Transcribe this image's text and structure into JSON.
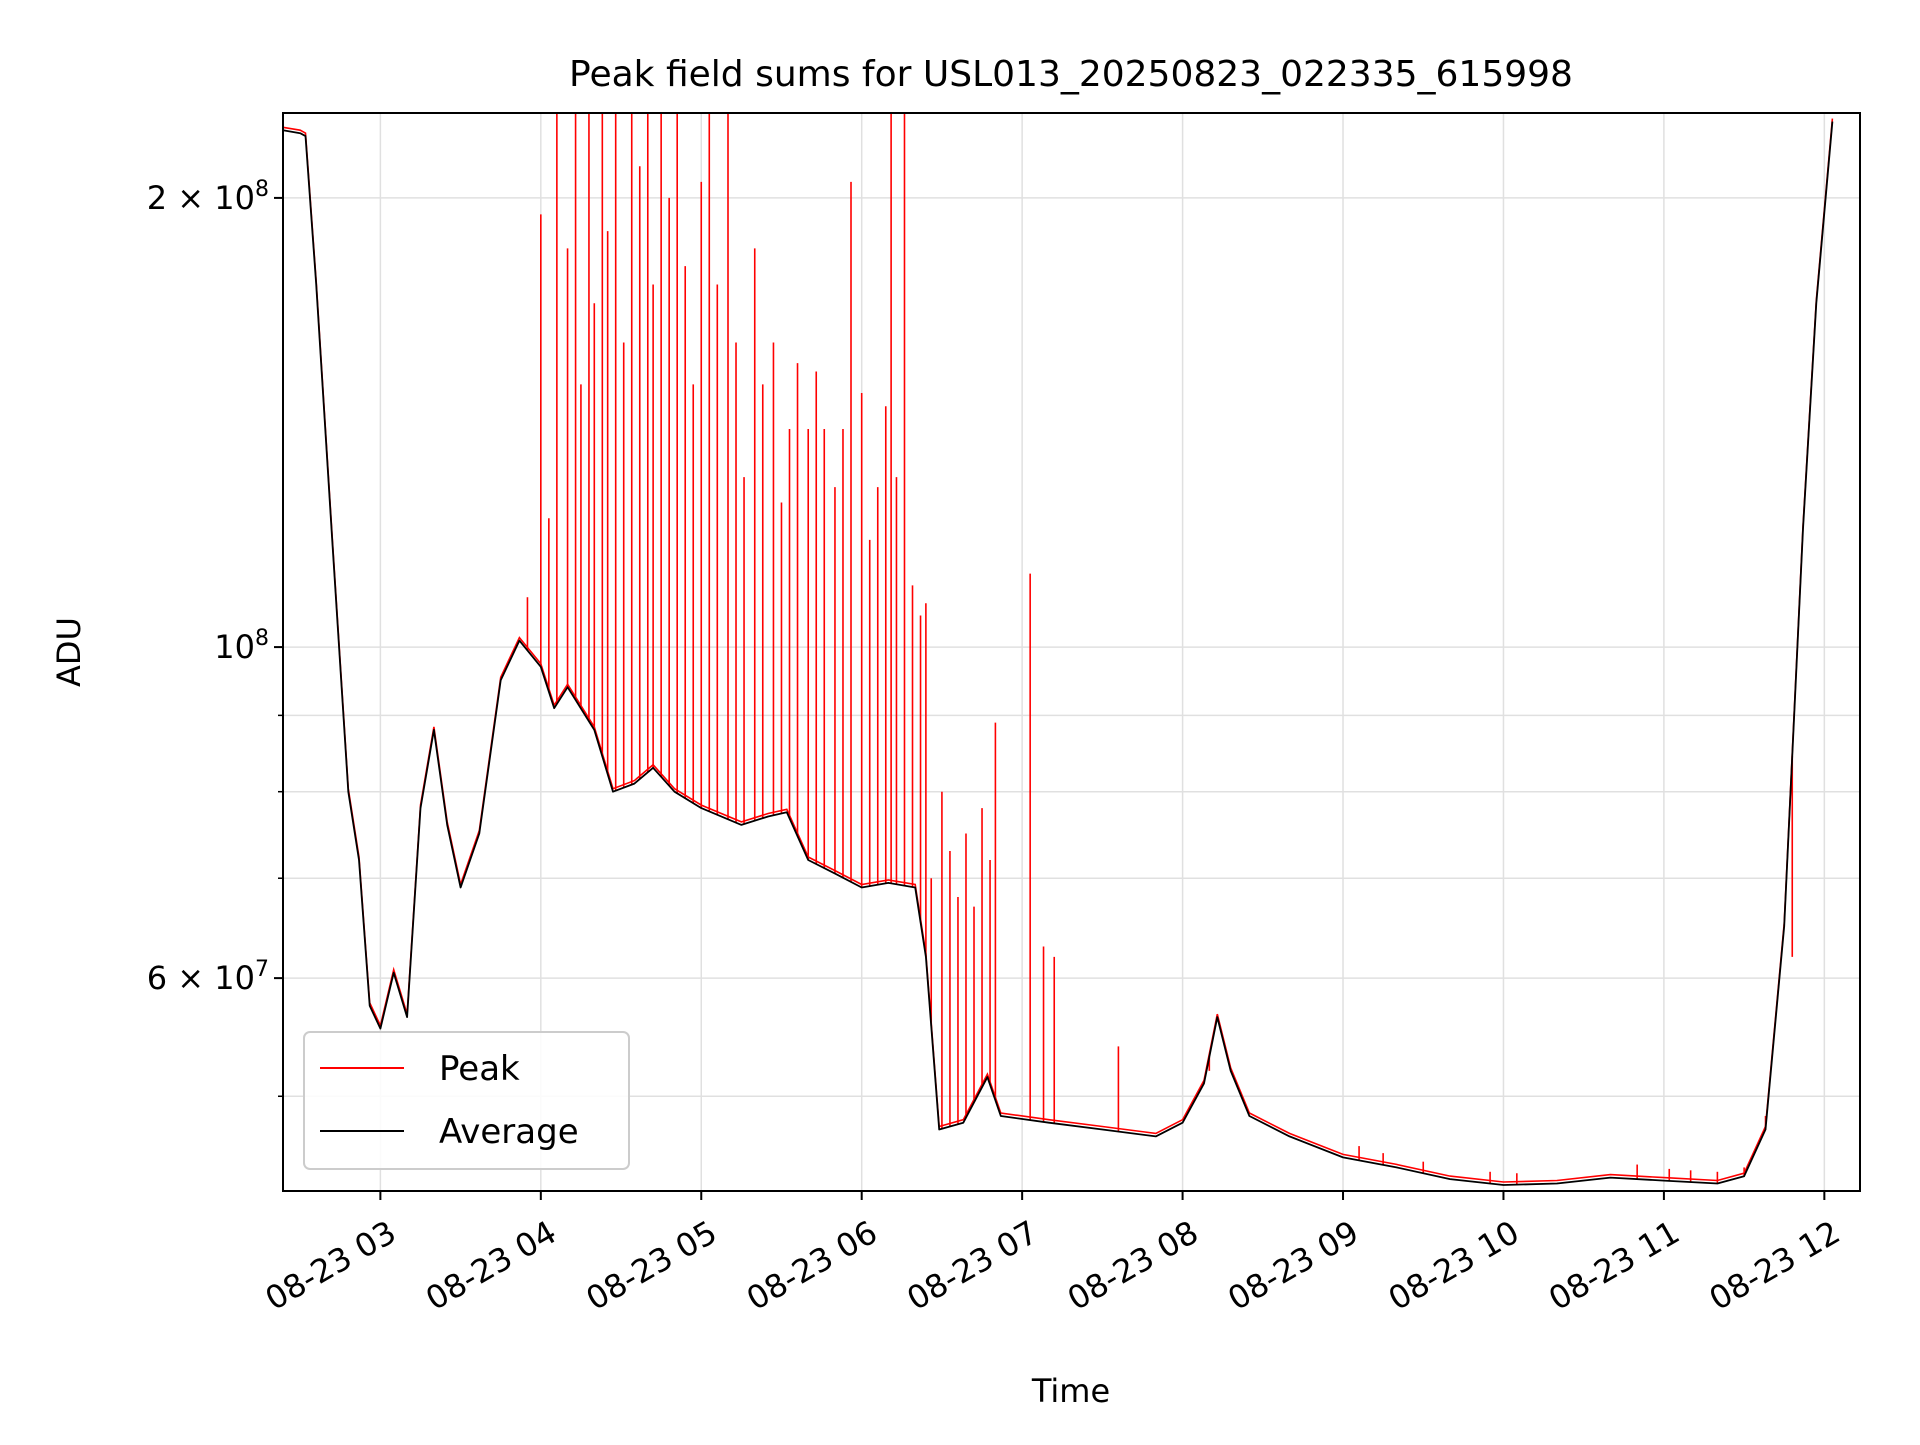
{
  "chart_data": {
    "type": "line",
    "title": "Peak field sums for USL013_20250823_022335_615998",
    "xlabel": "Time",
    "ylabel": "ADU",
    "y_scale": "log",
    "ylim": [
      43200000,
      228000000
    ],
    "xlim": [
      "2025-08-23T02:23:35",
      "2025-08-23T12:13:20"
    ],
    "grid": true,
    "legend_location": "lower-left",
    "x_ticks": [
      {
        "value": "2025-08-23T03:00:00",
        "label": "08-23 03"
      },
      {
        "value": "2025-08-23T04:00:00",
        "label": "08-23 04"
      },
      {
        "value": "2025-08-23T05:00:00",
        "label": "08-23 05"
      },
      {
        "value": "2025-08-23T06:00:00",
        "label": "08-23 06"
      },
      {
        "value": "2025-08-23T07:00:00",
        "label": "08-23 07"
      },
      {
        "value": "2025-08-23T08:00:00",
        "label": "08-23 08"
      },
      {
        "value": "2025-08-23T09:00:00",
        "label": "08-23 09"
      },
      {
        "value": "2025-08-23T10:00:00",
        "label": "08-23 10"
      },
      {
        "value": "2025-08-23T11:00:00",
        "label": "08-23 11"
      },
      {
        "value": "2025-08-23T12:00:00",
        "label": "08-23 12"
      }
    ],
    "y_major_ticks": [
      {
        "value": 60000000,
        "label_base": "6 × 10",
        "label_exp": "7"
      },
      {
        "value": 100000000,
        "label_base": "10",
        "label_exp": "8"
      },
      {
        "value": 200000000,
        "label_base": "2 × 10",
        "label_exp": "8"
      }
    ],
    "y_minor_ticks": [
      50000000,
      70000000,
      80000000,
      90000000
    ],
    "series": [
      {
        "name": "Average",
        "color": "#000000",
        "points": [
          [
            "2025-08-23T02:23:35",
            222000000
          ],
          [
            "2025-08-23T02:30:00",
            221000000
          ],
          [
            "2025-08-23T02:32:00",
            220000000
          ],
          [
            "2025-08-23T02:36:00",
            175000000
          ],
          [
            "2025-08-23T02:42:00",
            118000000
          ],
          [
            "2025-08-23T02:48:00",
            80000000
          ],
          [
            "2025-08-23T02:52:00",
            72000000
          ],
          [
            "2025-08-23T02:56:00",
            57500000
          ],
          [
            "2025-08-23T03:00:00",
            55500000
          ],
          [
            "2025-08-23T03:05:00",
            60500000
          ],
          [
            "2025-08-23T03:10:00",
            56500000
          ],
          [
            "2025-08-23T03:15:00",
            78000000
          ],
          [
            "2025-08-23T03:20:00",
            88000000
          ],
          [
            "2025-08-23T03:25:00",
            76000000
          ],
          [
            "2025-08-23T03:30:00",
            69000000
          ],
          [
            "2025-08-23T03:37:00",
            75000000
          ],
          [
            "2025-08-23T03:45:00",
            95000000
          ],
          [
            "2025-08-23T03:52:00",
            101000000
          ],
          [
            "2025-08-23T04:00:00",
            97000000
          ],
          [
            "2025-08-23T04:05:00",
            91000000
          ],
          [
            "2025-08-23T04:10:00",
            94000000
          ],
          [
            "2025-08-23T04:20:00",
            88000000
          ],
          [
            "2025-08-23T04:27:00",
            80000000
          ],
          [
            "2025-08-23T04:35:00",
            81000000
          ],
          [
            "2025-08-23T04:42:00",
            83000000
          ],
          [
            "2025-08-23T04:50:00",
            80000000
          ],
          [
            "2025-08-23T05:00:00",
            78000000
          ],
          [
            "2025-08-23T05:15:00",
            76000000
          ],
          [
            "2025-08-23T05:25:00",
            77000000
          ],
          [
            "2025-08-23T05:32:00",
            77500000
          ],
          [
            "2025-08-23T05:40:00",
            72000000
          ],
          [
            "2025-08-23T05:50:00",
            70500000
          ],
          [
            "2025-08-23T06:00:00",
            69000000
          ],
          [
            "2025-08-23T06:10:00",
            69500000
          ],
          [
            "2025-08-23T06:20:00",
            69000000
          ],
          [
            "2025-08-23T06:24:00",
            62000000
          ],
          [
            "2025-08-23T06:29:00",
            47500000
          ],
          [
            "2025-08-23T06:38:00",
            48000000
          ],
          [
            "2025-08-23T06:47:00",
            51500000
          ],
          [
            "2025-08-23T06:52:00",
            48500000
          ],
          [
            "2025-08-23T07:10:00",
            48000000
          ],
          [
            "2025-08-23T07:30:00",
            47500000
          ],
          [
            "2025-08-23T07:50:00",
            47000000
          ],
          [
            "2025-08-23T08:00:00",
            48000000
          ],
          [
            "2025-08-23T08:08:00",
            51000000
          ],
          [
            "2025-08-23T08:13:00",
            56500000
          ],
          [
            "2025-08-23T08:18:00",
            52000000
          ],
          [
            "2025-08-23T08:25:00",
            48500000
          ],
          [
            "2025-08-23T08:40:00",
            47000000
          ],
          [
            "2025-08-23T09:00:00",
            45500000
          ],
          [
            "2025-08-23T09:20:00",
            44800000
          ],
          [
            "2025-08-23T09:40:00",
            44000000
          ],
          [
            "2025-08-23T10:00:00",
            43600000
          ],
          [
            "2025-08-23T10:20:00",
            43700000
          ],
          [
            "2025-08-23T10:40:00",
            44100000
          ],
          [
            "2025-08-23T11:00:00",
            43900000
          ],
          [
            "2025-08-23T11:20:00",
            43700000
          ],
          [
            "2025-08-23T11:30:00",
            44200000
          ],
          [
            "2025-08-23T11:38:00",
            47500000
          ],
          [
            "2025-08-23T11:45:00",
            65000000
          ],
          [
            "2025-08-23T11:52:00",
            120000000
          ],
          [
            "2025-08-23T11:57:00",
            170000000
          ],
          [
            "2025-08-23T12:03:00",
            225000000
          ]
        ]
      },
      {
        "name": "Peak",
        "color": "#ff0000",
        "spikes": [
          [
            "2025-08-23T03:55:00",
            108000000
          ],
          [
            "2025-08-23T04:00:00",
            195000000
          ],
          [
            "2025-08-23T04:03:00",
            122000000
          ],
          [
            "2025-08-23T04:06:00",
            228000000
          ],
          [
            "2025-08-23T04:10:00",
            185000000
          ],
          [
            "2025-08-23T04:13:00",
            228000000
          ],
          [
            "2025-08-23T04:15:00",
            150000000
          ],
          [
            "2025-08-23T04:18:00",
            228000000
          ],
          [
            "2025-08-23T04:20:00",
            170000000
          ],
          [
            "2025-08-23T04:23:00",
            228000000
          ],
          [
            "2025-08-23T04:25:00",
            190000000
          ],
          [
            "2025-08-23T04:28:00",
            228000000
          ],
          [
            "2025-08-23T04:31:00",
            160000000
          ],
          [
            "2025-08-23T04:34:00",
            228000000
          ],
          [
            "2025-08-23T04:37:00",
            210000000
          ],
          [
            "2025-08-23T04:40:00",
            228000000
          ],
          [
            "2025-08-23T04:42:00",
            175000000
          ],
          [
            "2025-08-23T04:45:00",
            228000000
          ],
          [
            "2025-08-23T04:48:00",
            200000000
          ],
          [
            "2025-08-23T04:51:00",
            228000000
          ],
          [
            "2025-08-23T04:54:00",
            180000000
          ],
          [
            "2025-08-23T04:57:00",
            150000000
          ],
          [
            "2025-08-23T05:00:00",
            205000000
          ],
          [
            "2025-08-23T05:03:00",
            228000000
          ],
          [
            "2025-08-23T05:06:00",
            175000000
          ],
          [
            "2025-08-23T05:10:00",
            228000000
          ],
          [
            "2025-08-23T05:13:00",
            160000000
          ],
          [
            "2025-08-23T05:16:00",
            130000000
          ],
          [
            "2025-08-23T05:20:00",
            185000000
          ],
          [
            "2025-08-23T05:23:00",
            150000000
          ],
          [
            "2025-08-23T05:27:00",
            160000000
          ],
          [
            "2025-08-23T05:30:00",
            125000000
          ],
          [
            "2025-08-23T05:33:00",
            140000000
          ],
          [
            "2025-08-23T05:36:00",
            155000000
          ],
          [
            "2025-08-23T05:40:00",
            140000000
          ],
          [
            "2025-08-23T05:43:00",
            153000000
          ],
          [
            "2025-08-23T05:46:00",
            140000000
          ],
          [
            "2025-08-23T05:50:00",
            128000000
          ],
          [
            "2025-08-23T05:53:00",
            140000000
          ],
          [
            "2025-08-23T05:56:00",
            205000000
          ],
          [
            "2025-08-23T06:00:00",
            148000000
          ],
          [
            "2025-08-23T06:03:00",
            118000000
          ],
          [
            "2025-08-23T06:06:00",
            128000000
          ],
          [
            "2025-08-23T06:09:00",
            145000000
          ],
          [
            "2025-08-23T06:11:00",
            228000000
          ],
          [
            "2025-08-23T06:13:00",
            130000000
          ],
          [
            "2025-08-23T06:16:00",
            228000000
          ],
          [
            "2025-08-23T06:19:00",
            110000000
          ],
          [
            "2025-08-23T06:22:00",
            105000000
          ],
          [
            "2025-08-23T06:24:00",
            107000000
          ],
          [
            "2025-08-23T06:26:00",
            70000000
          ],
          [
            "2025-08-23T06:30:00",
            80000000
          ],
          [
            "2025-08-23T06:33:00",
            73000000
          ],
          [
            "2025-08-23T06:36:00",
            68000000
          ],
          [
            "2025-08-23T06:39:00",
            75000000
          ],
          [
            "2025-08-23T06:42:00",
            67000000
          ],
          [
            "2025-08-23T06:45:00",
            78000000
          ],
          [
            "2025-08-23T06:48:00",
            72000000
          ],
          [
            "2025-08-23T06:50:00",
            89000000
          ],
          [
            "2025-08-23T07:03:00",
            112000000
          ],
          [
            "2025-08-23T07:08:00",
            63000000
          ],
          [
            "2025-08-23T07:12:00",
            62000000
          ],
          [
            "2025-08-23T07:36:00",
            54000000
          ],
          [
            "2025-08-23T08:10:00",
            52000000
          ],
          [
            "2025-08-23T09:06:00",
            46300000
          ],
          [
            "2025-08-23T09:15:00",
            45800000
          ],
          [
            "2025-08-23T09:30:00",
            45200000
          ],
          [
            "2025-08-23T09:55:00",
            44500000
          ],
          [
            "2025-08-23T10:05:00",
            44400000
          ],
          [
            "2025-08-23T10:50:00",
            45000000
          ],
          [
            "2025-08-23T11:02:00",
            44700000
          ],
          [
            "2025-08-23T11:10:00",
            44600000
          ],
          [
            "2025-08-23T11:20:00",
            44500000
          ],
          [
            "2025-08-23T11:30:00",
            44800000
          ],
          [
            "2025-08-23T11:38:00",
            48500000
          ],
          [
            "2025-08-23T11:48:00",
            62000000
          ]
        ]
      }
    ]
  }
}
